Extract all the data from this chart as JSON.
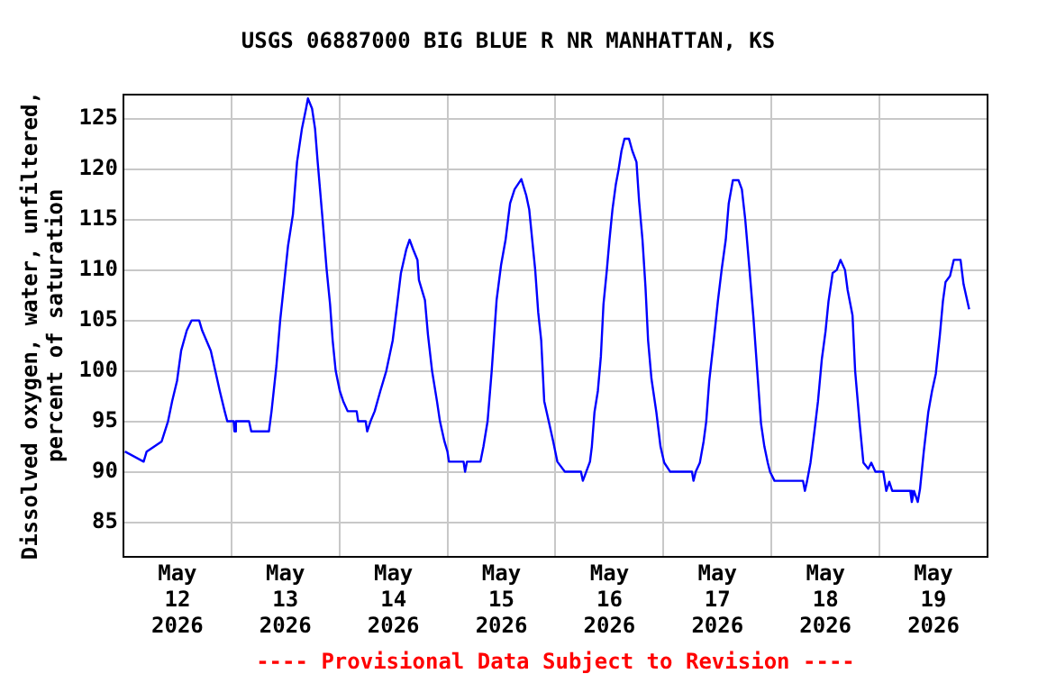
{
  "chart_data": {
    "type": "line",
    "title": "USGS 06887000 BIG BLUE R NR MANHATTAN, KS",
    "ylabel": "Dissolved oxygen, water, unfiltered,\npercent of saturation",
    "annotations": [
      "---- Provisional Data Subject to Revision ----"
    ],
    "xlim": [
      "2026-05-12T00:00",
      "2026-05-20T00:00"
    ],
    "xticks": [
      {
        "value": "2026-05-12T12:00",
        "label": "May\n12\n2026"
      },
      {
        "value": "2026-05-13T00:00",
        "label": null
      },
      {
        "value": "2026-05-13T12:00",
        "label": "May\n13\n2026"
      },
      {
        "value": "2026-05-14T00:00",
        "label": null
      },
      {
        "value": "2026-05-14T12:00",
        "label": "May\n14\n2026"
      },
      {
        "value": "2026-05-15T00:00",
        "label": null
      },
      {
        "value": "2026-05-15T12:00",
        "label": "May\n15\n2026"
      },
      {
        "value": "2026-05-16T00:00",
        "label": null
      },
      {
        "value": "2026-05-16T12:00",
        "label": "May\n16\n2026"
      },
      {
        "value": "2026-05-17T00:00",
        "label": null
      },
      {
        "value": "2026-05-17T12:00",
        "label": "May\n17\n2026"
      },
      {
        "value": "2026-05-18T00:00",
        "label": null
      },
      {
        "value": "2026-05-18T12:00",
        "label": "May\n18\n2026"
      },
      {
        "value": "2026-05-19T00:00",
        "label": null
      },
      {
        "value": "2026-05-19T12:00",
        "label": "May\n19\n2026"
      }
    ],
    "ylim": [
      81.6,
      127.4
    ],
    "yticks": [
      85,
      90,
      95,
      100,
      105,
      110,
      115,
      120,
      125
    ],
    "grid": true,
    "legend": false,
    "marker": "none",
    "line_style": "solid",
    "series": [
      {
        "color": "#0000ff",
        "x": [
          "2026-05-12T00:20",
          "2026-05-12T04:30",
          "2026-05-12T05:10",
          "2026-05-12T08:30",
          "2026-05-12T09:55",
          "2026-05-12T10:50",
          "2026-05-12T11:55",
          "2026-05-12T12:50",
          "2026-05-12T14:05",
          "2026-05-12T15:10",
          "2026-05-12T16:50",
          "2026-05-12T17:30",
          "2026-05-12T19:25",
          "2026-05-12T20:25",
          "2026-05-12T21:25",
          "2026-05-12T22:30",
          "2026-05-12T23:05",
          "2026-05-13T00:30",
          "2026-05-13T00:40",
          "2026-05-13T01:00",
          "2026-05-13T03:55",
          "2026-05-13T04:25",
          "2026-05-13T08:20",
          "2026-05-13T08:55",
          "2026-05-13T10:00",
          "2026-05-13T10:50",
          "2026-05-13T11:40",
          "2026-05-13T12:35",
          "2026-05-13T13:40",
          "2026-05-13T14:35",
          "2026-05-13T15:40",
          "2026-05-13T16:35",
          "2026-05-13T17:00",
          "2026-05-13T17:55",
          "2026-05-13T18:35",
          "2026-05-13T19:10",
          "2026-05-13T20:20",
          "2026-05-13T21:10",
          "2026-05-13T21:55",
          "2026-05-13T22:30",
          "2026-05-13T23:10",
          "2026-05-14T00:05",
          "2026-05-14T00:50",
          "2026-05-14T01:50",
          "2026-05-14T03:50",
          "2026-05-14T04:10",
          "2026-05-14T05:50",
          "2026-05-14T06:10",
          "2026-05-14T06:55",
          "2026-05-14T07:50",
          "2026-05-14T09:05",
          "2026-05-14T10:25",
          "2026-05-14T11:50",
          "2026-05-14T12:40",
          "2026-05-14T13:40",
          "2026-05-14T14:50",
          "2026-05-14T15:35",
          "2026-05-14T16:25",
          "2026-05-14T17:20",
          "2026-05-14T17:40",
          "2026-05-14T19:00",
          "2026-05-14T19:40",
          "2026-05-14T20:35",
          "2026-05-14T21:40",
          "2026-05-14T22:20",
          "2026-05-14T23:20",
          "2026-05-15T00:00",
          "2026-05-15T00:20",
          "2026-05-15T03:35",
          "2026-05-15T03:55",
          "2026-05-15T04:20",
          "2026-05-15T07:20",
          "2026-05-15T08:00",
          "2026-05-15T08:55",
          "2026-05-15T09:50",
          "2026-05-15T10:55",
          "2026-05-15T11:55",
          "2026-05-15T12:55",
          "2026-05-15T13:55",
          "2026-05-15T14:55",
          "2026-05-15T16:25",
          "2026-05-15T17:30",
          "2026-05-15T18:10",
          "2026-05-15T18:50",
          "2026-05-15T19:30",
          "2026-05-15T20:10",
          "2026-05-15T20:50",
          "2026-05-15T21:30",
          "2026-05-15T22:30",
          "2026-05-15T23:30",
          "2026-05-16T00:25",
          "2026-05-16T02:05",
          "2026-05-16T05:40",
          "2026-05-16T06:05",
          "2026-05-16T06:50",
          "2026-05-16T07:40",
          "2026-05-16T08:05",
          "2026-05-16T08:40",
          "2026-05-16T09:25",
          "2026-05-16T10:05",
          "2026-05-16T10:40",
          "2026-05-16T11:25",
          "2026-05-16T12:00",
          "2026-05-16T12:40",
          "2026-05-16T13:25",
          "2026-05-16T14:00",
          "2026-05-16T14:40",
          "2026-05-16T15:20",
          "2026-05-16T16:20",
          "2026-05-16T17:05",
          "2026-05-16T18:00",
          "2026-05-16T18:35",
          "2026-05-16T19:20",
          "2026-05-16T20:00",
          "2026-05-16T20:35",
          "2026-05-16T21:20",
          "2026-05-16T22:25",
          "2026-05-16T23:20",
          "2026-05-17T00:10",
          "2026-05-17T01:30",
          "2026-05-17T06:20",
          "2026-05-17T06:40",
          "2026-05-17T07:10",
          "2026-05-17T08:05",
          "2026-05-17T08:55",
          "2026-05-17T09:30",
          "2026-05-17T10:10",
          "2026-05-17T11:10",
          "2026-05-17T12:05",
          "2026-05-17T12:55",
          "2026-05-17T13:50",
          "2026-05-17T14:30",
          "2026-05-17T15:25",
          "2026-05-17T16:40",
          "2026-05-17T17:25",
          "2026-05-17T18:10",
          "2026-05-17T19:05",
          "2026-05-17T20:00",
          "2026-05-17T20:50",
          "2026-05-17T21:40",
          "2026-05-17T22:25",
          "2026-05-17T23:10",
          "2026-05-17T23:40",
          "2026-05-18T00:40",
          "2026-05-18T07:00",
          "2026-05-18T07:25",
          "2026-05-18T07:55",
          "2026-05-18T08:40",
          "2026-05-18T09:35",
          "2026-05-18T10:20",
          "2026-05-18T11:10",
          "2026-05-18T12:00",
          "2026-05-18T12:40",
          "2026-05-18T13:35",
          "2026-05-18T14:30",
          "2026-05-18T15:20",
          "2026-05-18T16:20",
          "2026-05-18T16:55",
          "2026-05-18T18:00",
          "2026-05-18T18:35",
          "2026-05-18T19:35",
          "2026-05-18T20:25",
          "2026-05-18T21:30",
          "2026-05-18T22:10",
          "2026-05-18T23:05",
          "2026-05-19T00:50",
          "2026-05-19T01:30",
          "2026-05-19T02:10",
          "2026-05-19T02:50",
          "2026-05-19T06:50",
          "2026-05-19T07:10",
          "2026-05-19T07:40",
          "2026-05-19T08:30",
          "2026-05-19T09:00",
          "2026-05-19T09:50",
          "2026-05-19T10:50",
          "2026-05-19T11:40",
          "2026-05-19T12:30",
          "2026-05-19T13:25",
          "2026-05-19T14:05",
          "2026-05-19T14:40",
          "2026-05-19T15:40",
          "2026-05-19T16:30",
          "2026-05-19T18:00",
          "2026-05-19T18:40",
          "2026-05-19T19:55"
        ],
        "values": [
          92,
          91,
          92,
          93,
          95,
          97,
          99,
          102,
          104,
          105,
          105,
          104,
          102,
          100,
          98,
          96,
          95,
          95,
          94,
          95,
          95,
          94,
          94,
          96,
          100.5,
          105,
          108.5,
          112.4,
          115.5,
          120.7,
          124,
          126,
          127,
          126,
          124,
          120.7,
          114.6,
          110,
          106.6,
          103,
          100,
          98,
          97,
          96,
          96,
          95,
          95,
          94,
          95,
          96,
          98,
          100,
          103,
          106,
          109.7,
          112,
          113,
          112,
          111,
          109,
          107,
          103.6,
          100,
          97,
          95,
          93,
          92,
          91,
          91,
          90,
          91,
          91,
          92.5,
          95,
          100,
          107,
          110.5,
          113,
          116.6,
          118,
          119,
          117.4,
          116,
          113,
          110,
          105.8,
          103,
          97,
          95,
          93,
          91,
          90,
          90,
          89.1,
          90,
          91,
          92.5,
          95.9,
          98,
          101.4,
          106.6,
          110,
          113,
          116,
          118.5,
          119.9,
          121.8,
          123,
          123,
          121.8,
          120.7,
          116.8,
          113,
          108.3,
          103,
          99.2,
          95.9,
          92.5,
          90.9,
          90,
          90,
          89.1,
          90,
          90.9,
          93,
          95,
          99,
          103,
          106.9,
          110,
          113,
          116.6,
          118.9,
          118.9,
          118,
          115,
          110.2,
          105.2,
          100,
          94.8,
          92.5,
          90.9,
          90,
          89.1,
          89.1,
          88.1,
          89.1,
          90.9,
          94.2,
          97,
          101.1,
          103.9,
          106.9,
          109.7,
          110,
          111,
          110,
          108,
          105.5,
          100,
          94.8,
          90.9,
          90.3,
          90.9,
          90,
          90,
          88.1,
          89,
          88.1,
          88.1,
          87,
          88.1,
          87,
          88.3,
          92,
          95.9,
          98,
          99.7,
          103.6,
          106.9,
          108.8,
          109.4,
          111,
          111,
          108.6,
          106.1
        ]
      }
    ]
  }
}
